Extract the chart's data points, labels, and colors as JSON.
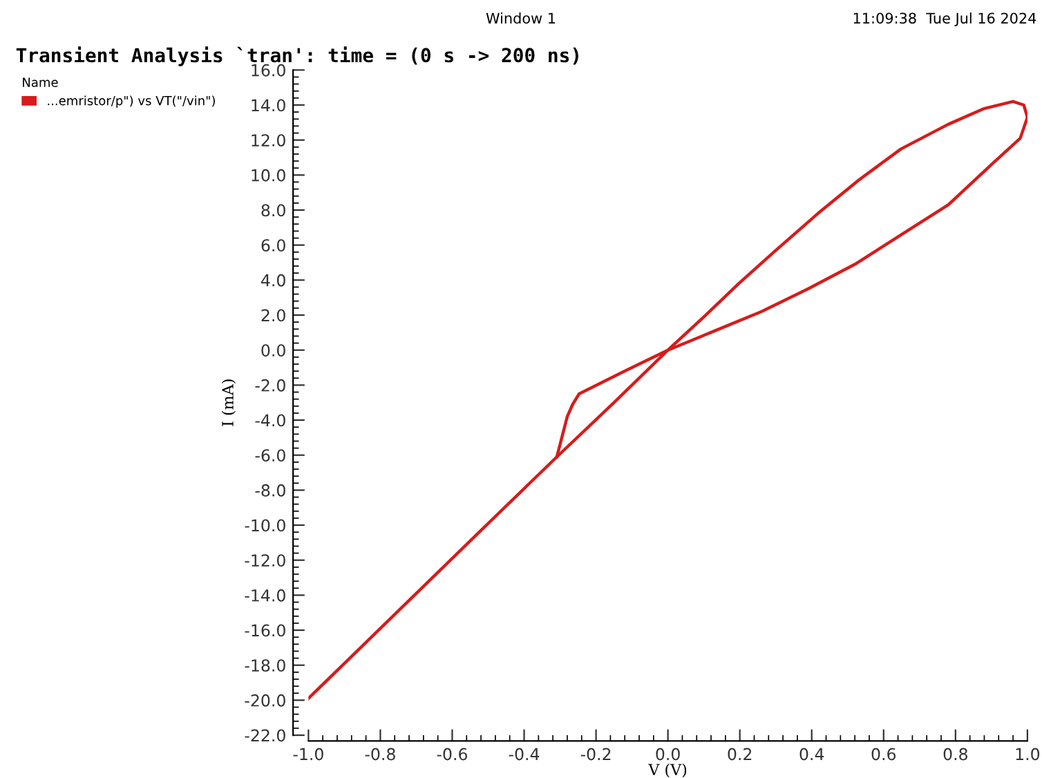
{
  "chart_data": {
    "type": "line",
    "title": "Transient Analysis `tran': time = (0 s -> 200 ns)",
    "xlabel": "V (V)",
    "ylabel": "I (mA)",
    "legend_title": "Name",
    "legend": "top left",
    "annotations": [
      "Window 1",
      "11:09:38  Tue Jul 16 2024"
    ],
    "series": [
      {
        "name": "...emristor/p\") vs VT(\"/vin\")",
        "color": "#d81b1b",
        "x": [
          -1.0,
          -0.75,
          -0.5,
          -0.309,
          -0.15,
          0.0,
          0.1,
          0.197,
          0.3,
          0.417,
          0.53,
          0.649,
          0.78,
          0.88,
          0.96,
          0.99,
          1.0
        ],
        "values": [
          -19.9,
          -14.9,
          -9.9,
          -6.1,
          -3.0,
          0.0,
          1.9,
          3.8,
          5.7,
          7.8,
          9.7,
          11.5,
          12.9,
          13.8,
          14.2,
          14.0,
          13.3
        ]
      },
      {
        "color": "#d81b1b",
        "x": [
          1.0,
          0.98,
          0.9,
          0.78,
          0.65,
          0.52,
          0.39,
          0.26,
          0.13,
          0.0,
          -0.12,
          -0.247,
          -0.265,
          -0.28,
          -0.309
        ],
        "values": [
          13.3,
          12.1,
          10.6,
          8.3,
          6.6,
          4.9,
          3.5,
          2.2,
          1.1,
          0.0,
          -1.2,
          -2.5,
          -3.1,
          -3.8,
          -6.1
        ]
      }
    ],
    "xlim": [
      -1.0,
      1.0
    ],
    "ylim": [
      -22.0,
      16.0
    ],
    "xticks": [
      {
        "value": -1.0,
        "label": "-1.0"
      },
      {
        "value": -0.8,
        "label": "-0.8"
      },
      {
        "value": -0.6,
        "label": "-0.6"
      },
      {
        "value": -0.4,
        "label": "-0.4"
      },
      {
        "value": -0.2,
        "label": "-0.2"
      },
      {
        "value": 0.0,
        "label": "0.0"
      },
      {
        "value": 0.2,
        "label": "0.2"
      },
      {
        "value": 0.4,
        "label": "0.4"
      },
      {
        "value": 0.6,
        "label": "0.6"
      },
      {
        "value": 0.8,
        "label": "0.8"
      },
      {
        "value": 1.0,
        "label": "1.0"
      }
    ],
    "yticks": [
      {
        "value": -22,
        "label": "-22.0"
      },
      {
        "value": -20,
        "label": "-20.0"
      },
      {
        "value": -18,
        "label": "-18.0"
      },
      {
        "value": -16,
        "label": "-16.0"
      },
      {
        "value": -14,
        "label": "-14.0"
      },
      {
        "value": -12,
        "label": "-12.0"
      },
      {
        "value": -10,
        "label": "-10.0"
      },
      {
        "value": -8,
        "label": "-8.0"
      },
      {
        "value": -6,
        "label": "-6.0"
      },
      {
        "value": -4,
        "label": "-4.0"
      },
      {
        "value": -2,
        "label": "-2.0"
      },
      {
        "value": 0,
        "label": "0.0"
      },
      {
        "value": 2,
        "label": "2.0"
      },
      {
        "value": 4,
        "label": "4.0"
      },
      {
        "value": 6,
        "label": "6.0"
      },
      {
        "value": 8,
        "label": "8.0"
      },
      {
        "value": 10,
        "label": "10.0"
      },
      {
        "value": 12,
        "label": "12.0"
      },
      {
        "value": 14,
        "label": "14.0"
      },
      {
        "value": 16,
        "label": "16.0"
      }
    ],
    "grid": false,
    "marker": "none",
    "line_style": "solid"
  }
}
